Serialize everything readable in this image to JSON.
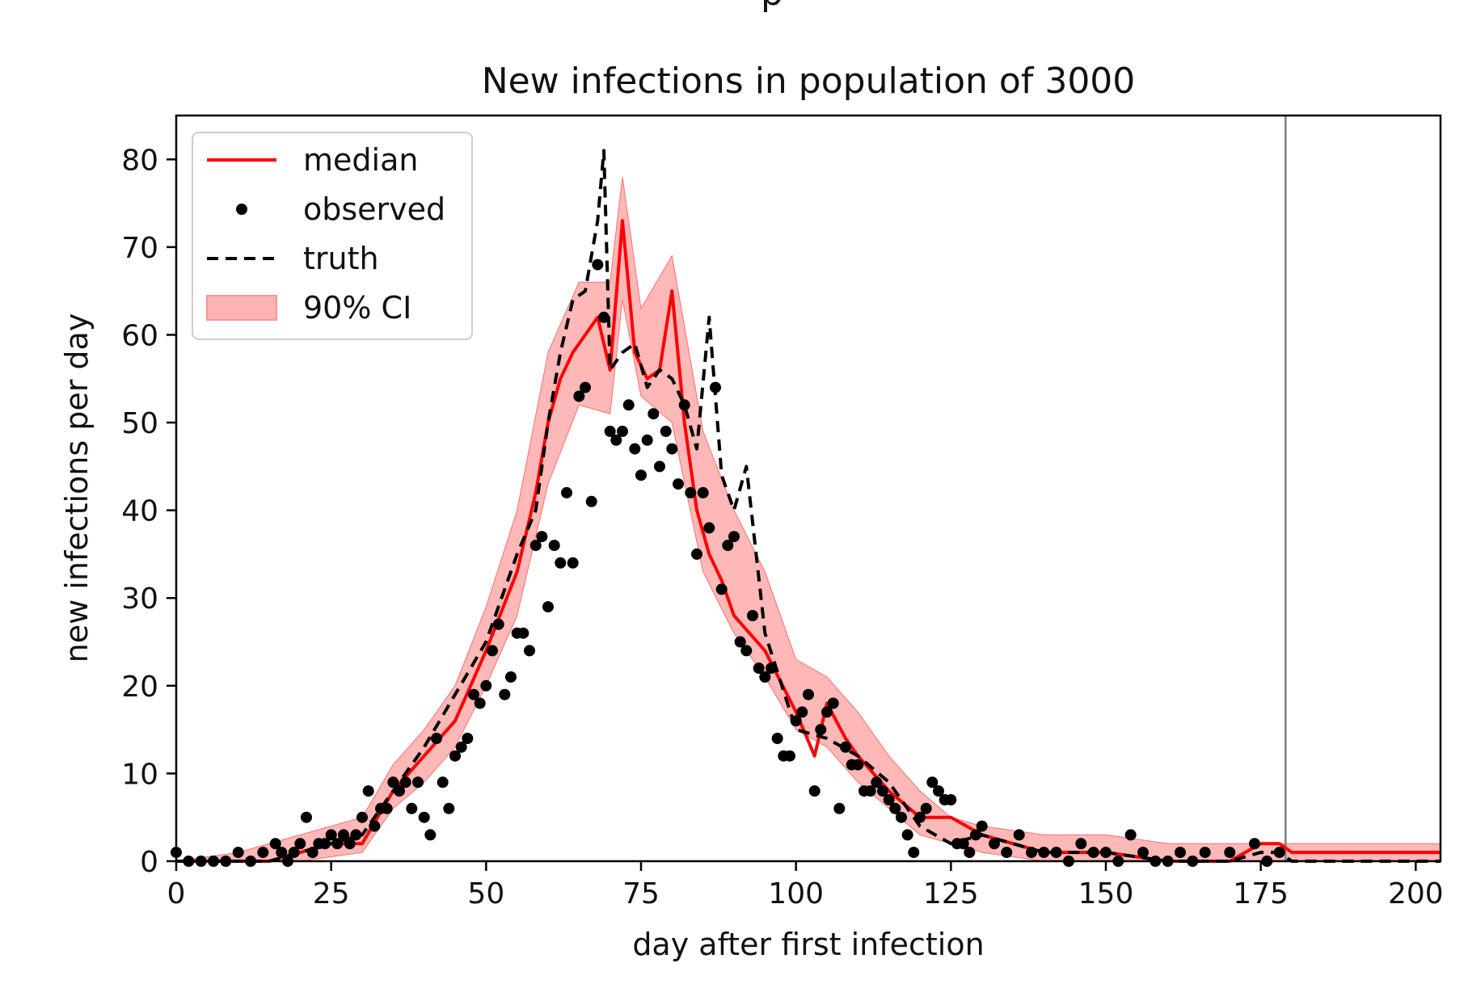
{
  "chart_data": {
    "type": "line",
    "top_text": "p",
    "title": "New infections in population of 3000",
    "xlabel": "day after first infection",
    "ylabel": "new infections per day",
    "xlim": [
      0,
      204
    ],
    "ylim": [
      0,
      85
    ],
    "x_ticks": [
      0,
      25,
      50,
      75,
      100,
      125,
      150,
      175,
      200
    ],
    "y_ticks": [
      0,
      10,
      20,
      30,
      40,
      50,
      60,
      70,
      80
    ],
    "vline_x": 179,
    "grid": false,
    "legend_position": "top-left",
    "colors": {
      "median": "#ff0000",
      "ci_fill": "#ff9a9a",
      "ci_edge": "#ff6f6f",
      "truth": "#000000",
      "observed": "#000000",
      "vline": "#808080",
      "axes": "#000000"
    },
    "legend": [
      {
        "key": "median",
        "label": "median"
      },
      {
        "key": "observed",
        "label": "observed"
      },
      {
        "key": "truth",
        "label": "truth"
      },
      {
        "key": "ci",
        "label": "90% CI"
      }
    ],
    "series": {
      "median": {
        "x": [
          0,
          10,
          15,
          20,
          25,
          30,
          35,
          40,
          45,
          50,
          55,
          58,
          60,
          62,
          64,
          66,
          68,
          70,
          72,
          74,
          76,
          78,
          80,
          82,
          84,
          86,
          88,
          90,
          95,
          100,
          103,
          105,
          108,
          110,
          115,
          120,
          125,
          130,
          140,
          150,
          160,
          170,
          175,
          178,
          180,
          190,
          200,
          204
        ],
        "y": [
          0,
          0,
          0,
          1,
          2,
          2,
          8,
          12,
          16,
          24,
          33,
          42,
          50,
          55,
          58,
          60,
          62,
          56,
          73,
          58,
          55,
          56,
          65,
          50,
          40,
          35,
          32,
          28,
          24,
          17,
          12,
          18,
          14,
          12,
          8,
          5,
          5,
          3,
          1,
          1,
          0,
          0,
          2,
          2,
          1,
          1,
          1,
          1
        ]
      },
      "truth": {
        "x": [
          0,
          10,
          15,
          20,
          25,
          30,
          35,
          40,
          45,
          50,
          55,
          58,
          60,
          62,
          64,
          66,
          68,
          69,
          70,
          72,
          74,
          76,
          78,
          80,
          82,
          84,
          86,
          88,
          90,
          92,
          95,
          100,
          105,
          110,
          115,
          120,
          125,
          130,
          140,
          150,
          160,
          170,
          175,
          178,
          180,
          190,
          200,
          204
        ],
        "y": [
          0,
          0,
          0,
          1,
          2,
          3,
          8,
          13,
          19,
          25,
          35,
          40,
          50,
          58,
          64,
          65,
          73,
          81,
          56,
          58,
          59,
          54,
          56,
          55,
          52,
          47,
          62,
          44,
          40,
          45,
          26,
          15,
          14,
          12,
          9,
          4,
          2,
          3,
          1,
          1,
          0,
          0,
          1,
          1,
          0,
          0,
          0,
          0
        ]
      },
      "ci": {
        "x": [
          0,
          10,
          20,
          30,
          35,
          40,
          45,
          50,
          55,
          60,
          65,
          70,
          72,
          75,
          80,
          85,
          90,
          95,
          100,
          105,
          110,
          115,
          120,
          125,
          130,
          140,
          150,
          160,
          170,
          178,
          180,
          190,
          204
        ],
        "lower": [
          0,
          0,
          0,
          1,
          6,
          9,
          13,
          20,
          28,
          43,
          52,
          51,
          64,
          53,
          50,
          33,
          26,
          21,
          15,
          13,
          9,
          6,
          3,
          2,
          1,
          0,
          0,
          0,
          0,
          0,
          0,
          0,
          0
        ],
        "upper": [
          0,
          1,
          3,
          5,
          11,
          15,
          20,
          29,
          40,
          58,
          66,
          66,
          78,
          63,
          69,
          49,
          40,
          33,
          23,
          21,
          17,
          12,
          8,
          5,
          4,
          3,
          3,
          2,
          2,
          2,
          2,
          2,
          2
        ]
      },
      "observed": {
        "x": [
          0,
          2,
          4,
          6,
          8,
          10,
          12,
          14,
          16,
          17,
          18,
          19,
          20,
          21,
          22,
          23,
          24,
          25,
          26,
          27,
          28,
          29,
          30,
          31,
          32,
          33,
          34,
          35,
          36,
          37,
          38,
          39,
          40,
          41,
          42,
          43,
          44,
          45,
          46,
          47,
          48,
          49,
          50,
          51,
          52,
          53,
          54,
          55,
          56,
          57,
          58,
          59,
          60,
          61,
          62,
          63,
          64,
          65,
          66,
          67,
          68,
          69,
          70,
          71,
          72,
          73,
          74,
          75,
          76,
          77,
          78,
          79,
          80,
          81,
          82,
          83,
          84,
          85,
          86,
          87,
          88,
          89,
          90,
          91,
          92,
          93,
          94,
          95,
          96,
          97,
          98,
          99,
          100,
          101,
          102,
          103,
          104,
          105,
          106,
          107,
          108,
          109,
          110,
          111,
          112,
          113,
          114,
          115,
          116,
          117,
          118,
          119,
          120,
          121,
          122,
          123,
          124,
          125,
          126,
          127,
          128,
          129,
          130,
          132,
          134,
          136,
          138,
          140,
          142,
          144,
          146,
          148,
          150,
          152,
          154,
          156,
          158,
          160,
          162,
          164,
          166,
          170,
          174,
          176,
          178
        ],
        "y": [
          1,
          0,
          0,
          0,
          0,
          1,
          0,
          1,
          2,
          1,
          0,
          1,
          2,
          5,
          1,
          2,
          2,
          3,
          2,
          3,
          2,
          3,
          5,
          8,
          4,
          6,
          6,
          9,
          8,
          9,
          6,
          9,
          5,
          3,
          14,
          9,
          6,
          12,
          13,
          14,
          19,
          18,
          20,
          24,
          27,
          19,
          21,
          26,
          26,
          24,
          36,
          37,
          29,
          36,
          34,
          42,
          34,
          53,
          54,
          41,
          68,
          62,
          49,
          48,
          49,
          52,
          47,
          44,
          48,
          51,
          45,
          49,
          47,
          43,
          52,
          42,
          35,
          42,
          38,
          54,
          31,
          36,
          37,
          25,
          24,
          28,
          22,
          21,
          22,
          14,
          12,
          12,
          16,
          17,
          19,
          8,
          15,
          17,
          18,
          6,
          13,
          11,
          11,
          8,
          8,
          9,
          8,
          7,
          6,
          5,
          3,
          1,
          5,
          6,
          9,
          8,
          7,
          7,
          2,
          2,
          1,
          3,
          4,
          2,
          1,
          3,
          1,
          1,
          1,
          0,
          2,
          1,
          1,
          0,
          3,
          1,
          0,
          0,
          1,
          0,
          1,
          1,
          2,
          0,
          1
        ]
      }
    }
  }
}
